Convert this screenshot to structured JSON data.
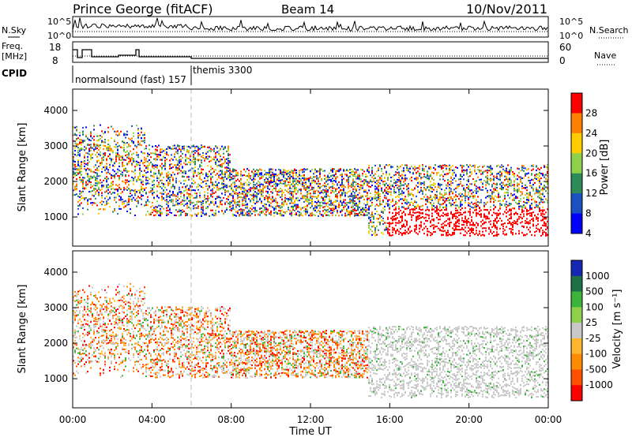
{
  "header": {
    "station": "Prince George (fitACF)",
    "beam": "Beam 14",
    "date": "10/Nov/2011"
  },
  "left_labels": {
    "nsky": "N.Sky",
    "freq": "Freq.",
    "mhz": "[MHz]",
    "cpid": "CPID"
  },
  "right_labels": {
    "nsearch": "N.Search",
    "nave": "Nave"
  },
  "cpid_labels": {
    "first": "normalsound (fast) 157",
    "second": "themis 3300"
  },
  "noise_panel": {
    "ticks_left": [
      "10^5",
      "10^0"
    ],
    "ticks_right": [
      "10^5",
      "10^0"
    ]
  },
  "freq_panel": {
    "ticks_left": [
      "18",
      "8"
    ],
    "ticks_right": [
      "60",
      "0"
    ]
  },
  "chart_data": [
    {
      "type": "heatmap",
      "name": "power",
      "ylabel": "Slant Range [km]",
      "ylim": [
        180,
        4600
      ],
      "yticks": [
        "1000",
        "2000",
        "3000",
        "4000"
      ],
      "colorbar": {
        "label": "Power [dB]",
        "ticks": [
          "28",
          "24",
          "20",
          "16",
          "12",
          "8",
          "4"
        ],
        "colors": [
          "#ff0000",
          "#ff7f00",
          "#ffcc00",
          "#8fd04a",
          "#2e8b57",
          "#1c4fbf",
          "#0000ff"
        ]
      }
    },
    {
      "type": "heatmap",
      "name": "velocity",
      "ylabel": "Slant Range [km]",
      "ylim": [
        180,
        4600
      ],
      "yticks": [
        "1000",
        "2000",
        "3000",
        "4000"
      ],
      "colorbar": {
        "label": "Velocity [m s⁻¹]",
        "ticks": [
          "1000",
          "500",
          "100",
          "25",
          "-25",
          "-100",
          "-500",
          "-1000"
        ],
        "colors": [
          "#1428b4",
          "#1e6e46",
          "#3cb43c",
          "#8fd04a",
          "#c8c8c8",
          "#ffb432",
          "#ff8c00",
          "#ff5000",
          "#ff0000"
        ]
      }
    }
  ],
  "x_axis": {
    "label": "Time UT",
    "ticks": [
      "00:00",
      "04:00",
      "08:00",
      "12:00",
      "16:00",
      "20:00",
      "00:00"
    ]
  }
}
